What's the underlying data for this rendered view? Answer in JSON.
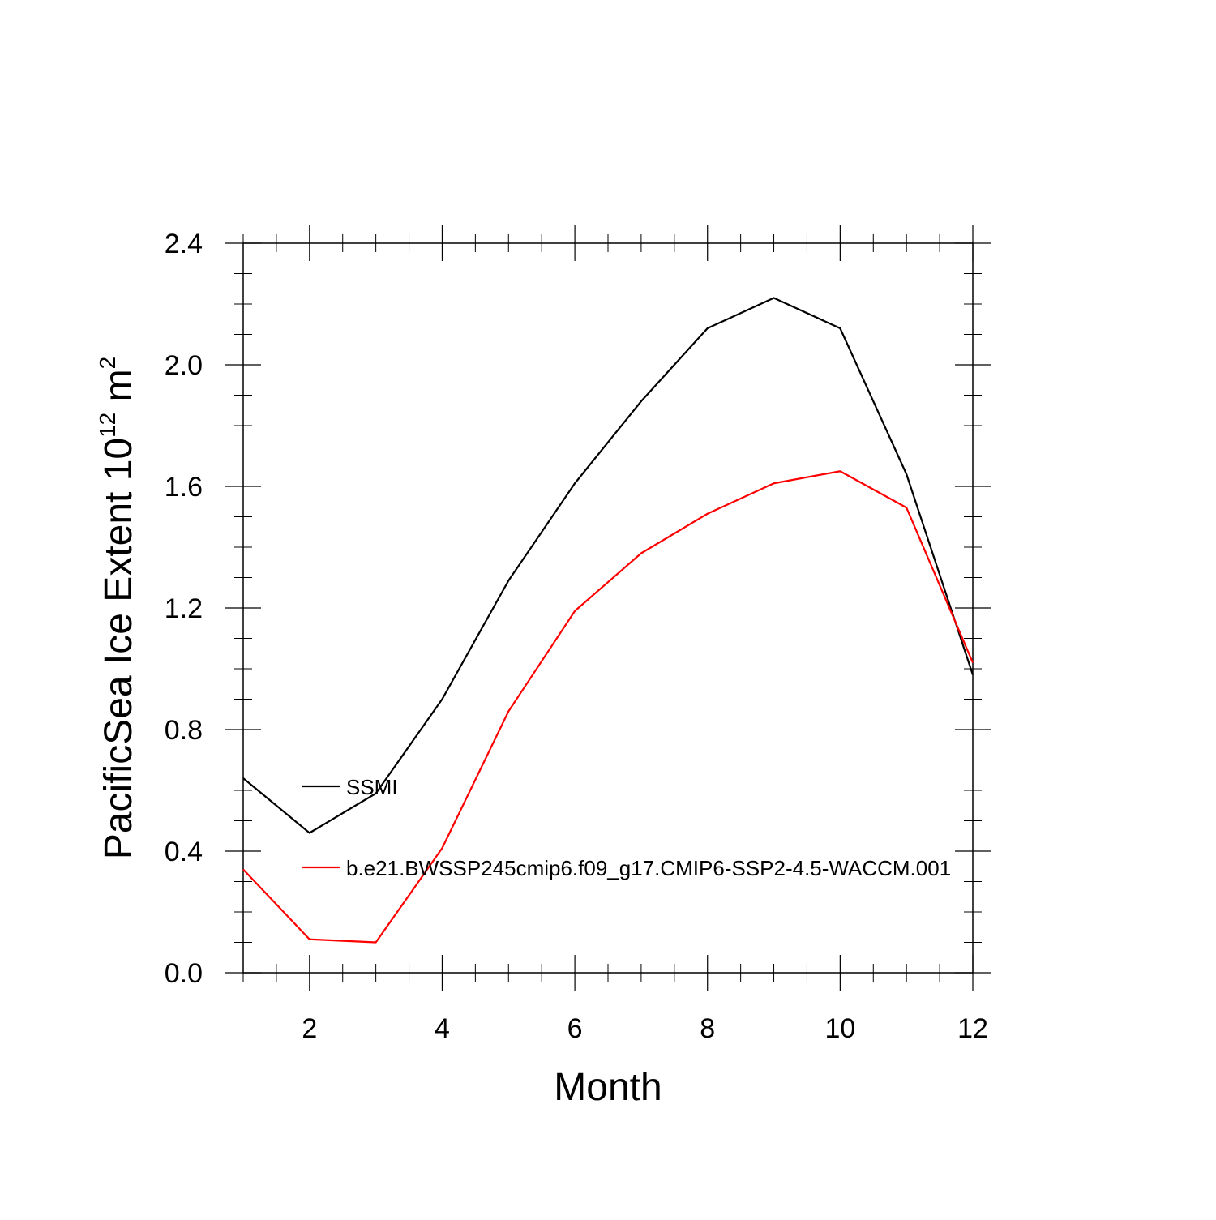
{
  "chart_data": {
    "type": "line",
    "xlabel": "Month",
    "ylabel": {
      "prefix": "PacificSea Ice Extent 10",
      "exponent": "12",
      "mid": " m",
      "unit_exponent": "2"
    },
    "xlim": [
      1,
      12
    ],
    "ylim": [
      0,
      2.4
    ],
    "x_major_ticks": [
      2,
      4,
      6,
      8,
      10,
      12
    ],
    "x_tick_labels": [
      "2",
      "4",
      "6",
      "8",
      "10",
      "12"
    ],
    "x_minor_ticks": [
      1,
      1.5,
      2.5,
      3,
      3.5,
      4.5,
      5,
      5.5,
      6.5,
      7,
      7.5,
      8.5,
      9,
      9.5,
      10.5,
      11,
      11.5
    ],
    "y_major_ticks": [
      0,
      0.4,
      0.8,
      1.2,
      1.6,
      2.0,
      2.4
    ],
    "y_tick_labels": [
      "0.0",
      "0.4",
      "0.8",
      "1.2",
      "1.6",
      "2.0",
      "2.4"
    ],
    "y_minor_step": 0.1,
    "legend_position": "inside-left",
    "x": [
      1,
      2,
      3,
      4,
      5,
      6,
      7,
      8,
      9,
      10,
      11,
      12
    ],
    "series": [
      {
        "name": "SSMI",
        "color": "#000000",
        "values": [
          0.64,
          0.46,
          0.59,
          0.9,
          1.29,
          1.61,
          1.88,
          2.12,
          2.22,
          2.12,
          1.64,
          0.98
        ]
      },
      {
        "name": "b.e21.BWSSP245cmip6.f09_g17.CMIP6-SSP2-4.5-WACCM.001",
        "color": "#ff0000",
        "values": [
          0.34,
          0.11,
          0.1,
          0.41,
          0.86,
          1.19,
          1.38,
          1.51,
          1.61,
          1.65,
          1.53,
          1.02
        ]
      }
    ]
  }
}
